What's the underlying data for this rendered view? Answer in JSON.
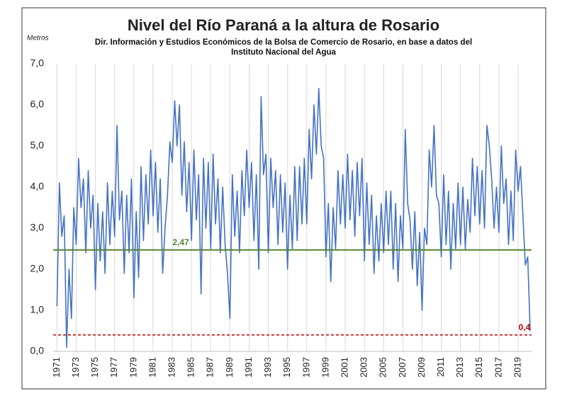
{
  "chart_data": {
    "type": "line",
    "title": "Nivel del Río Paraná a la altura de Rosario",
    "subtitle": "Dir. Información y Estudios Económicos de la Bolsa de Comercio de Rosario, en base a datos del Instituto Nacional del Agua",
    "y_label": "Metros",
    "x": [
      1971,
      1971.25,
      1971.5,
      1971.75,
      1972,
      1972.25,
      1972.5,
      1972.75,
      1973,
      1973.25,
      1973.5,
      1973.75,
      1974,
      1974.25,
      1974.5,
      1974.75,
      1975,
      1975.25,
      1975.5,
      1975.75,
      1976,
      1976.25,
      1976.5,
      1976.75,
      1977,
      1977.25,
      1977.5,
      1977.75,
      1978,
      1978.25,
      1978.5,
      1978.75,
      1979,
      1979.25,
      1979.5,
      1979.75,
      1980,
      1980.25,
      1980.5,
      1980.75,
      1981,
      1981.25,
      1981.5,
      1981.75,
      1982,
      1982.25,
      1982.5,
      1982.75,
      1983,
      1983.25,
      1983.5,
      1983.75,
      1984,
      1984.25,
      1984.5,
      1984.75,
      1985,
      1985.25,
      1985.5,
      1985.75,
      1986,
      1986.25,
      1986.5,
      1986.75,
      1987,
      1987.25,
      1987.5,
      1987.75,
      1988,
      1988.25,
      1988.5,
      1988.75,
      1989,
      1989.25,
      1989.5,
      1989.75,
      1990,
      1990.25,
      1990.5,
      1990.75,
      1991,
      1991.25,
      1991.5,
      1991.75,
      1992,
      1992.25,
      1992.5,
      1992.75,
      1993,
      1993.25,
      1993.5,
      1993.75,
      1994,
      1994.25,
      1994.5,
      1994.75,
      1995,
      1995.25,
      1995.5,
      1995.75,
      1996,
      1996.25,
      1996.5,
      1996.75,
      1997,
      1997.25,
      1997.5,
      1997.75,
      1998,
      1998.25,
      1998.5,
      1998.75,
      1999,
      1999.25,
      1999.5,
      1999.75,
      2000,
      2000.25,
      2000.5,
      2000.75,
      2001,
      2001.25,
      2001.5,
      2001.75,
      2002,
      2002.25,
      2002.5,
      2002.75,
      2003,
      2003.25,
      2003.5,
      2003.75,
      2004,
      2004.25,
      2004.5,
      2004.75,
      2005,
      2005.25,
      2005.5,
      2005.75,
      2006,
      2006.25,
      2006.5,
      2006.75,
      2007,
      2007.25,
      2007.5,
      2007.75,
      2008,
      2008.25,
      2008.5,
      2008.75,
      2009,
      2009.25,
      2009.5,
      2009.75,
      2010,
      2010.25,
      2010.5,
      2010.75,
      2011,
      2011.25,
      2011.5,
      2011.75,
      2012,
      2012.25,
      2012.5,
      2012.75,
      2013,
      2013.25,
      2013.5,
      2013.75,
      2014,
      2014.25,
      2014.5,
      2014.75,
      2015,
      2015.25,
      2015.5,
      2015.75,
      2016,
      2016.25,
      2016.5,
      2016.75,
      2017,
      2017.25,
      2017.5,
      2017.75,
      2018,
      2018.25,
      2018.5,
      2018.75,
      2019,
      2019.25,
      2019.5,
      2019.75,
      2020,
      2020.25
    ],
    "series": [
      {
        "color": "#4472c4",
        "values": [
          1.1,
          4.1,
          2.8,
          3.3,
          0.1,
          2.0,
          0.8,
          3.5,
          2.6,
          4.7,
          3.5,
          4.2,
          2.4,
          4.4,
          3.0,
          3.8,
          1.5,
          3.6,
          2.2,
          3.4,
          1.9,
          4.1,
          2.6,
          3.9,
          2.8,
          5.5,
          3.2,
          3.9,
          1.9,
          3.8,
          2.4,
          4.2,
          1.3,
          3.4,
          1.8,
          4.5,
          2.7,
          4.3,
          3.1,
          4.9,
          3.3,
          4.6,
          2.9,
          4.2,
          1.9,
          3.0,
          3.8,
          5.1,
          4.6,
          6.1,
          5.0,
          6.0,
          3.8,
          5.1,
          3.4,
          4.6,
          2.7,
          4.9,
          3.2,
          4.3,
          1.4,
          4.7,
          3.0,
          4.6,
          2.5,
          4.8,
          3.1,
          4.2,
          2.4,
          4.0,
          2.6,
          1.9,
          0.8,
          4.3,
          2.8,
          3.9,
          2.4,
          4.4,
          3.3,
          4.9,
          3.5,
          4.6,
          2.7,
          4.3,
          2.0,
          6.2,
          4.3,
          4.8,
          2.4,
          4.7,
          3.5,
          4.4,
          2.6,
          4.3,
          2.9,
          4.1,
          2.0,
          3.8,
          2.5,
          4.5,
          2.7,
          4.5,
          3.1,
          4.7,
          3.1,
          5.4,
          4.2,
          6.0,
          4.8,
          6.4,
          5.0,
          4.7,
          2.3,
          3.6,
          1.7,
          3.5,
          2.5,
          4.4,
          3.1,
          4.3,
          3.0,
          4.8,
          3.2,
          4.4,
          2.8,
          4.6,
          3.3,
          4.7,
          2.2,
          4.1,
          2.6,
          3.8,
          1.9,
          3.3,
          2.2,
          3.6,
          2.4,
          3.9,
          2.6,
          3.9,
          2.0,
          3.6,
          1.7,
          3.3,
          2.5,
          5.4,
          3.6,
          3.2,
          2.0,
          3.4,
          1.6,
          2.9,
          1.0,
          3.0,
          2.6,
          4.9,
          4.0,
          5.5,
          3.8,
          3.6,
          2.3,
          4.3,
          2.6,
          3.9,
          2.0,
          3.6,
          2.5,
          4.1,
          2.6,
          4.0,
          2.5,
          3.7,
          2.9,
          4.7,
          3.3,
          4.5,
          3.1,
          4.4,
          3.0,
          5.5,
          5.0,
          4.2,
          3.0,
          4.0,
          2.9,
          5.0,
          3.6,
          4.2,
          2.6,
          3.9,
          2.7,
          4.9,
          3.9,
          4.5,
          3.3,
          2.1,
          2.3,
          0.5
        ]
      }
    ],
    "reference_lines": [
      {
        "value": 2.47,
        "label": "2,47",
        "color": "#548235"
      },
      {
        "value": 0.4,
        "label": "0,4",
        "color": "#c00000"
      }
    ],
    "xlim": [
      1970.6,
      2020.4
    ],
    "xticks": [
      1971,
      1973,
      1975,
      1977,
      1979,
      1981,
      1983,
      1985,
      1987,
      1989,
      1991,
      1993,
      1995,
      1997,
      1999,
      2001,
      2003,
      2005,
      2007,
      2009,
      2011,
      2013,
      2015,
      2017,
      2019
    ],
    "ylim": [
      0,
      7
    ],
    "yticks": [
      {
        "value": 0,
        "label": "0,0"
      },
      {
        "value": 1,
        "label": "1,0"
      },
      {
        "value": 2,
        "label": "2,0"
      },
      {
        "value": 3,
        "label": "3,0"
      },
      {
        "value": 4,
        "label": "4,0"
      },
      {
        "value": 5,
        "label": "5,0"
      },
      {
        "value": 6,
        "label": "6,0"
      },
      {
        "value": 7,
        "label": "7,0"
      }
    ],
    "grid": "x"
  }
}
